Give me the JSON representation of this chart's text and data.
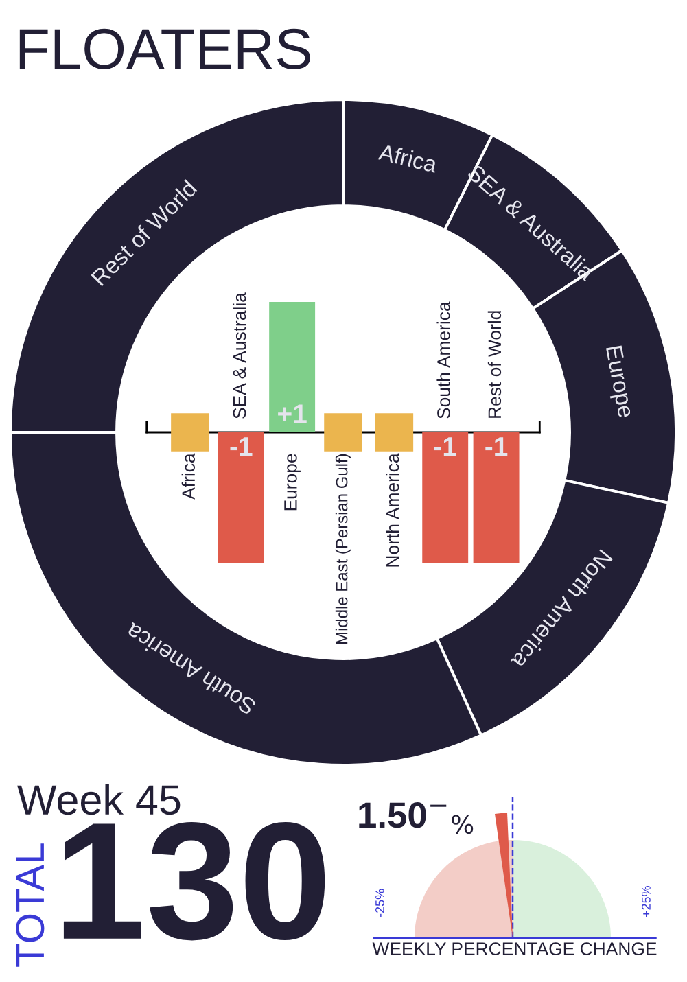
{
  "chart_data": [
    {
      "type": "donut",
      "title": "FLOATERS",
      "categories": [
        "Africa",
        "SEA & Australia",
        "Europe",
        "North America",
        "South America",
        "Rest of World"
      ],
      "values": [
        7.4,
        8.4,
        12.6,
        14.8,
        31.8,
        25.0
      ],
      "colors": [
        "#221f35",
        "#221f35",
        "#221f35",
        "#221f35",
        "#221f35",
        "#221f35"
      ]
    },
    {
      "type": "bar",
      "categories": [
        "Africa",
        "SEA & Australia",
        "Europe",
        "Middle East (Persian Gulf)",
        "North America",
        "South America",
        "Rest of World"
      ],
      "values": [
        0,
        -1,
        1,
        0,
        0,
        -1,
        -1
      ],
      "colors": [
        "#ebb54e",
        "#df5a4a",
        "#7fcf8a",
        "#ebb54e",
        "#ebb54e",
        "#df5a4a",
        "#df5a4a"
      ],
      "value_labels": [
        null,
        "-1",
        "+1",
        null,
        null,
        "-1",
        "-1"
      ]
    },
    {
      "type": "other",
      "title": "Week 45",
      "ylabel": "TOTAL",
      "annotations": [
        "130"
      ]
    },
    {
      "type": "other",
      "xlabel": "WEEKLY PERCENTAGE CHANGE",
      "annotations": [
        "1.50$^{−}$$_{%}$",
        "-25%",
        "+25%"
      ]
    }
  ]
}
